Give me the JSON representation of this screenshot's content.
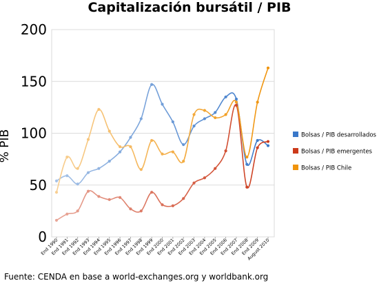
{
  "chart_data": {
    "type": "line",
    "title": "Capitalización bursátil / PIB",
    "ylabel": "% PIB",
    "xlabel": "",
    "ylim": [
      0,
      200
    ],
    "yticks": [
      0,
      50,
      100,
      150,
      200
    ],
    "grid": "horizontal",
    "legend": "right",
    "categories": [
      "End 1990",
      "End 1991",
      "End 1992",
      "End 1993",
      "End 1994",
      "End 1995",
      "End 1996",
      "End 1997",
      "End 1998",
      "End 1999",
      "End 2000",
      "End 2001",
      "End 2002",
      "End 2003",
      "End 2004",
      "End 2005",
      "End 2006",
      "End 2007",
      "End 2008",
      "End 2009",
      "August 2010"
    ],
    "series": [
      {
        "name": "Bolsas / PIB desarrollados",
        "color": "#3a78c9",
        "values": [
          54,
          59,
          51,
          62,
          66,
          73,
          82,
          96,
          114,
          147,
          128,
          111,
          89,
          107,
          114,
          120,
          135,
          133,
          70,
          93,
          88
        ]
      },
      {
        "name": "Bolsas / PIB emergentes",
        "color": "#cc3a1a",
        "values": [
          16,
          22,
          25,
          44,
          39,
          36,
          38,
          27,
          25,
          43,
          31,
          30,
          37,
          52,
          57,
          66,
          83,
          127,
          48,
          86,
          92
        ]
      },
      {
        "name": "Bolsas / PIB Chile",
        "color": "#f0940c",
        "values": [
          43,
          77,
          66,
          94,
          123,
          102,
          87,
          87,
          65,
          93,
          80,
          82,
          73,
          118,
          122,
          115,
          118,
          130,
          77,
          130,
          163
        ]
      }
    ]
  },
  "source": "Fuente: CENDA en base a world-exchanges.org y worldbank.org"
}
